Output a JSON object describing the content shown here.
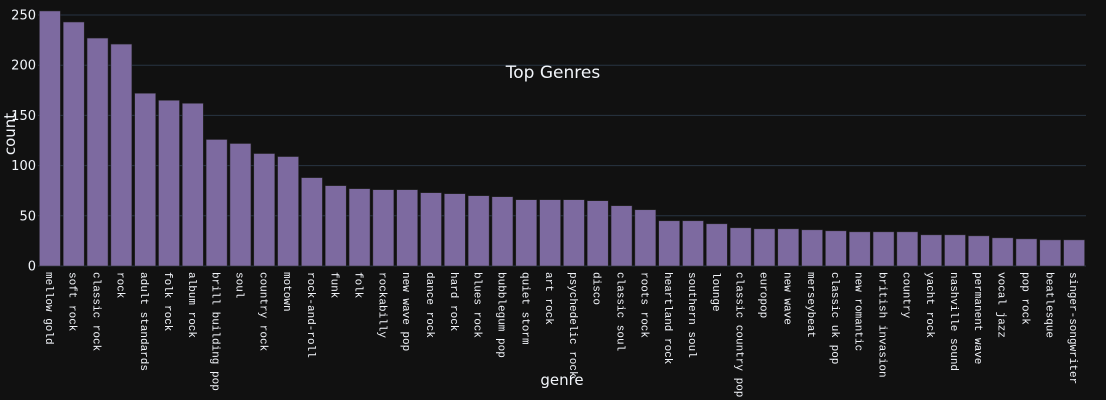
{
  "chart_data": {
    "type": "bar",
    "title": "Top Genres",
    "xlabel": "genre",
    "ylabel": "count",
    "ylim": [
      0,
      251
    ],
    "yticks": [
      0,
      50,
      100,
      150,
      200,
      250
    ],
    "grid": true,
    "categories": [
      "mellow gold",
      "soft rock",
      "classic rock",
      "rock",
      "adult standards",
      "folk rock",
      "album rock",
      "brill building pop",
      "soul",
      "country rock",
      "motown",
      "rock-and-roll",
      "funk",
      "folk",
      "rockabilly",
      "new wave pop",
      "dance rock",
      "hard rock",
      "blues rock",
      "bubblegum pop",
      "quiet storm",
      "art rock",
      "psychedelic rock",
      "disco",
      "classic soul",
      "roots rock",
      "heartland rock",
      "southern soul",
      "lounge",
      "classic country pop",
      "europop",
      "new wave",
      "merseybeat",
      "classic uk pop",
      "new romantic",
      "british invasion",
      "country",
      "yacht rock",
      "nashville sound",
      "permanent wave",
      "vocal jazz",
      "pop rock",
      "beatlesque",
      "singer-songwriter"
    ],
    "values": [
      254,
      243,
      227,
      221,
      172,
      165,
      162,
      126,
      122,
      112,
      109,
      88,
      80,
      77,
      76,
      76,
      73,
      72,
      70,
      69,
      66,
      66,
      66,
      65,
      60,
      56,
      45,
      45,
      42,
      38,
      37,
      37,
      36,
      35,
      34,
      34,
      34,
      31,
      31,
      30,
      28,
      27,
      26,
      26
    ]
  },
  "colors": {
    "background": "#111111",
    "bar_fill": "#7d6aa0",
    "bar_outline": "#2a2a2a",
    "grid": "#283442",
    "text": "#f2f5fa"
  }
}
